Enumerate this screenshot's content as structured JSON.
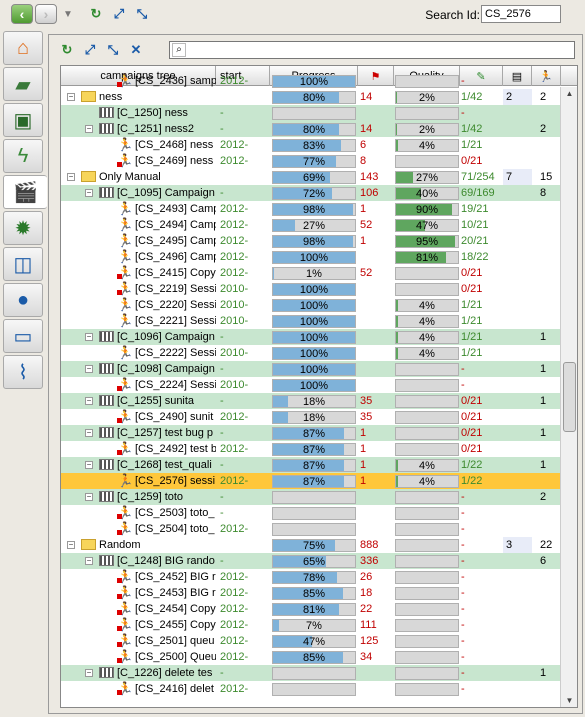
{
  "toolbar": {
    "back_icon": "back-arrow-icon",
    "forward_icon": "forward-arrow-icon",
    "search_label": "Search Id:",
    "search_value": "CS_2576"
  },
  "sidebar": {
    "items": [
      "home-icon",
      "requirements-icon",
      "test-board-icon",
      "lightning-icon",
      "campaigns-icon",
      "bug-icon",
      "diagram-icon",
      "user-icon",
      "computer-icon",
      "attachment-icon"
    ],
    "selected": 4
  },
  "panel": {
    "filter_value": ""
  },
  "columns": [
    "campaigns tree",
    "start",
    "Progress",
    "",
    "Quality",
    "",
    "",
    ""
  ],
  "rows": [
    {
      "indent": 2,
      "type": "run",
      "label": "[CS_2436] samp",
      "start": "2012-",
      "prog": 100,
      "bug": "",
      "qual": null,
      "exec": "-",
      "exec_c": "r",
      "n1": "",
      "n2": "",
      "style": "",
      "tw": "",
      "partial": true
    },
    {
      "indent": 0,
      "type": "folder",
      "label": "ness",
      "start": "",
      "prog": 80,
      "bug": "14",
      "qual": 2,
      "exec": "1/42",
      "exec_c": "g",
      "n1": "2",
      "n2": "2",
      "style": "",
      "tw": "-"
    },
    {
      "indent": 1,
      "type": "clap",
      "label": "[C_1250] ness",
      "start": "-",
      "prog": null,
      "bug": "",
      "qual": null,
      "exec": "-",
      "exec_c": "r",
      "n1": "",
      "n2": "",
      "style": "c",
      "tw": ""
    },
    {
      "indent": 1,
      "type": "clap",
      "label": "[C_1251] ness2",
      "start": "-",
      "prog": 80,
      "bug": "14",
      "qual": 2,
      "exec": "1/42",
      "exec_c": "g",
      "n1": "",
      "n2": "2",
      "style": "c",
      "tw": "-"
    },
    {
      "indent": 2,
      "type": "run",
      "label": "[CS_2468] ness",
      "start": "2012-",
      "prog": 83,
      "bug": "6",
      "qual": 4,
      "exec": "1/21",
      "exec_c": "g",
      "n1": "",
      "n2": "",
      "style": "",
      "tw": ""
    },
    {
      "indent": 2,
      "type": "run",
      "label": "[CS_2469] ness",
      "start": "2012-",
      "prog": 77,
      "bug": "8",
      "qual": null,
      "exec": "0/21",
      "exec_c": "r",
      "n1": "",
      "n2": "",
      "style": "",
      "tw": ""
    },
    {
      "indent": 0,
      "type": "folder",
      "label": "Only Manual",
      "start": "",
      "prog": 69,
      "bug": "143",
      "qual": 27,
      "exec": "71/254",
      "exec_c": "g",
      "n1": "7",
      "n2": "15",
      "style": "",
      "tw": "-"
    },
    {
      "indent": 1,
      "type": "clap",
      "label": "[C_1095] Campaign",
      "start": "-",
      "prog": 72,
      "bug": "106",
      "qual": 40,
      "exec": "69/169",
      "exec_c": "g",
      "n1": "",
      "n2": "8",
      "style": "c",
      "tw": "-"
    },
    {
      "indent": 2,
      "type": "run",
      "label": "[CS_2493] Camp",
      "start": "2012-",
      "prog": 98,
      "bug": "1",
      "qual": 90,
      "exec": "19/21",
      "exec_c": "g",
      "n1": "",
      "n2": "",
      "style": "",
      "tw": ""
    },
    {
      "indent": 2,
      "type": "run",
      "label": "[CS_2494] Camp",
      "start": "2012-",
      "prog": 27,
      "bug": "52",
      "qual": 47,
      "exec": "10/21",
      "exec_c": "g",
      "n1": "",
      "n2": "",
      "style": "",
      "tw": ""
    },
    {
      "indent": 2,
      "type": "run",
      "label": "[CS_2495] Camp",
      "start": "2012-",
      "prog": 98,
      "bug": "1",
      "qual": 95,
      "exec": "20/21",
      "exec_c": "g",
      "n1": "",
      "n2": "",
      "style": "",
      "tw": ""
    },
    {
      "indent": 2,
      "type": "run",
      "label": "[CS_2496] Camp",
      "start": "2012-",
      "prog": 100,
      "bug": "",
      "qual": 81,
      "exec": "18/22",
      "exec_c": "g",
      "n1": "",
      "n2": "",
      "style": "",
      "tw": ""
    },
    {
      "indent": 2,
      "type": "run",
      "label": "[CS_2415] Copy",
      "start": "2012-",
      "prog": 1,
      "bug": "52",
      "qual": null,
      "exec": "0/21",
      "exec_c": "r",
      "n1": "",
      "n2": "",
      "style": "",
      "tw": ""
    },
    {
      "indent": 2,
      "type": "run",
      "label": "[CS_2219] Sessi",
      "start": "2010-",
      "prog": 100,
      "bug": "",
      "qual": null,
      "exec": "0/21",
      "exec_c": "r",
      "n1": "",
      "n2": "",
      "style": "",
      "tw": ""
    },
    {
      "indent": 2,
      "type": "run",
      "label": "[CS_2220] Sessi",
      "start": "2010-",
      "prog": 100,
      "bug": "",
      "qual": 4,
      "exec": "1/21",
      "exec_c": "g",
      "n1": "",
      "n2": "",
      "style": "",
      "tw": ""
    },
    {
      "indent": 2,
      "type": "run",
      "label": "[CS_2221] Sessi",
      "start": "2010-",
      "prog": 100,
      "bug": "",
      "qual": 4,
      "exec": "1/21",
      "exec_c": "g",
      "n1": "",
      "n2": "",
      "style": "",
      "tw": ""
    },
    {
      "indent": 1,
      "type": "clap",
      "label": "[C_1096] Campaign",
      "start": "-",
      "prog": 100,
      "bug": "",
      "qual": 4,
      "exec": "1/21",
      "exec_c": "g",
      "n1": "",
      "n2": "1",
      "style": "c",
      "tw": "-"
    },
    {
      "indent": 2,
      "type": "run",
      "label": "[CS_2222] Sessi",
      "start": "2010-",
      "prog": 100,
      "bug": "",
      "qual": 4,
      "exec": "1/21",
      "exec_c": "g",
      "n1": "",
      "n2": "",
      "style": "",
      "tw": ""
    },
    {
      "indent": 1,
      "type": "clap",
      "label": "[C_1098] Campaign",
      "start": "-",
      "prog": 100,
      "bug": "",
      "qual": null,
      "exec": "-",
      "exec_c": "r",
      "n1": "",
      "n2": "1",
      "style": "c",
      "tw": "-"
    },
    {
      "indent": 2,
      "type": "run",
      "label": "[CS_2224] Sessi",
      "start": "2010-",
      "prog": 100,
      "bug": "",
      "qual": null,
      "exec": "-",
      "exec_c": "r",
      "n1": "",
      "n2": "",
      "style": "",
      "tw": ""
    },
    {
      "indent": 1,
      "type": "clap",
      "label": "[C_1255] sunita",
      "start": "-",
      "prog": 18,
      "bug": "35",
      "qual": null,
      "exec": "0/21",
      "exec_c": "r",
      "n1": "",
      "n2": "1",
      "style": "c",
      "tw": "-"
    },
    {
      "indent": 2,
      "type": "run",
      "label": "[CS_2490] sunit",
      "start": "2012-",
      "prog": 18,
      "bug": "35",
      "qual": null,
      "exec": "0/21",
      "exec_c": "r",
      "n1": "",
      "n2": "",
      "style": "",
      "tw": ""
    },
    {
      "indent": 1,
      "type": "clap",
      "label": "[C_1257] test bug p",
      "start": "-",
      "prog": 87,
      "bug": "1",
      "qual": null,
      "exec": "0/21",
      "exec_c": "r",
      "n1": "",
      "n2": "1",
      "style": "c",
      "tw": "-"
    },
    {
      "indent": 2,
      "type": "run",
      "label": "[CS_2492] test b",
      "start": "2012-",
      "prog": 87,
      "bug": "1",
      "qual": null,
      "exec": "0/21",
      "exec_c": "r",
      "n1": "",
      "n2": "",
      "style": "",
      "tw": ""
    },
    {
      "indent": 1,
      "type": "clap",
      "label": "[C_1268] test_quali",
      "start": "-",
      "prog": 87,
      "bug": "1",
      "qual": 4,
      "exec": "1/22",
      "exec_c": "g",
      "n1": "",
      "n2": "1",
      "style": "c",
      "tw": "-"
    },
    {
      "indent": 2,
      "type": "run",
      "label": "[CS_2576] sessi",
      "start": "2012-",
      "prog": 87,
      "bug": "1",
      "qual": 4,
      "exec": "1/22",
      "exec_c": "g",
      "n1": "",
      "n2": "",
      "style": "s",
      "tw": ""
    },
    {
      "indent": 1,
      "type": "clap",
      "label": "[C_1259] toto",
      "start": "-",
      "prog": null,
      "bug": "",
      "qual": null,
      "exec": "-",
      "exec_c": "r",
      "n1": "",
      "n2": "2",
      "style": "c",
      "tw": "-"
    },
    {
      "indent": 2,
      "type": "run",
      "label": "[CS_2503] toto_",
      "start": "-",
      "prog": null,
      "bug": "",
      "qual": null,
      "exec": "-",
      "exec_c": "r",
      "n1": "",
      "n2": "",
      "style": "",
      "tw": ""
    },
    {
      "indent": 2,
      "type": "run",
      "label": "[CS_2504] toto_",
      "start": "2012-",
      "prog": null,
      "bug": "",
      "qual": null,
      "exec": "-",
      "exec_c": "r",
      "n1": "",
      "n2": "",
      "style": "",
      "tw": ""
    },
    {
      "indent": 0,
      "type": "folder",
      "label": "Random",
      "start": "",
      "prog": 75,
      "bug": "888",
      "qual": null,
      "exec": "-",
      "exec_c": "r",
      "n1": "3",
      "n2": "22",
      "style": "",
      "tw": "-"
    },
    {
      "indent": 1,
      "type": "clap",
      "label": "[C_1248] BIG rando",
      "start": "-",
      "prog": 65,
      "bug": "336",
      "qual": null,
      "exec": "-",
      "exec_c": "r",
      "n1": "",
      "n2": "6",
      "style": "c",
      "tw": "-"
    },
    {
      "indent": 2,
      "type": "run",
      "label": "[CS_2452] BIG r",
      "start": "2012-",
      "prog": 78,
      "bug": "26",
      "qual": null,
      "exec": "-",
      "exec_c": "r",
      "n1": "",
      "n2": "",
      "style": "",
      "tw": ""
    },
    {
      "indent": 2,
      "type": "run",
      "label": "[CS_2453] BIG r",
      "start": "2012-",
      "prog": 85,
      "bug": "18",
      "qual": null,
      "exec": "-",
      "exec_c": "r",
      "n1": "",
      "n2": "",
      "style": "",
      "tw": ""
    },
    {
      "indent": 2,
      "type": "run",
      "label": "[CS_2454] Copy",
      "start": "2012-",
      "prog": 81,
      "bug": "22",
      "qual": null,
      "exec": "-",
      "exec_c": "r",
      "n1": "",
      "n2": "",
      "style": "",
      "tw": ""
    },
    {
      "indent": 2,
      "type": "run",
      "label": "[CS_2455] Copy",
      "start": "2012-",
      "prog": 7,
      "bug": "111",
      "qual": null,
      "exec": "-",
      "exec_c": "r",
      "n1": "",
      "n2": "",
      "style": "",
      "tw": ""
    },
    {
      "indent": 2,
      "type": "run",
      "label": "[CS_2501] queu",
      "start": "2012-",
      "prog": 47,
      "bug": "125",
      "qual": null,
      "exec": "-",
      "exec_c": "r",
      "n1": "",
      "n2": "",
      "style": "",
      "tw": ""
    },
    {
      "indent": 2,
      "type": "run",
      "label": "[CS_2500] Queu",
      "start": "2012-",
      "prog": 85,
      "bug": "34",
      "qual": null,
      "exec": "-",
      "exec_c": "r",
      "n1": "",
      "n2": "",
      "style": "",
      "tw": ""
    },
    {
      "indent": 1,
      "type": "clap",
      "label": "[C_1226] delete tes",
      "start": "-",
      "prog": null,
      "bug": "",
      "qual": null,
      "exec": "-",
      "exec_c": "r",
      "n1": "",
      "n2": "1",
      "style": "c",
      "tw": "-"
    },
    {
      "indent": 2,
      "type": "run",
      "label": "[CS_2416] delet",
      "start": "2012-",
      "prog": null,
      "bug": "",
      "qual": null,
      "exec": "-",
      "exec_c": "r",
      "n1": "",
      "n2": "",
      "style": "",
      "tw": ""
    }
  ]
}
